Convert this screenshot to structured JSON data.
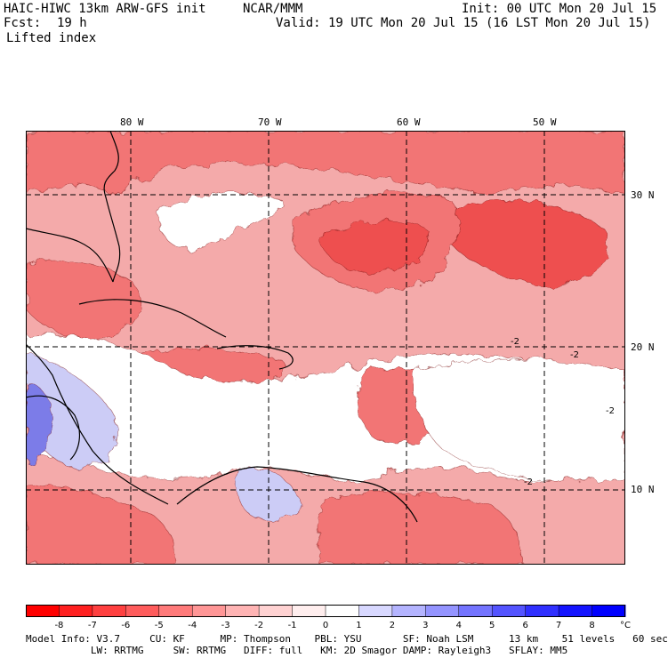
{
  "header": {
    "model": "HAIC-HIWC 13km ARW-GFS init",
    "center": "NCAR/MMM",
    "init": "Init: 00 UTC Mon 20 Jul 15",
    "fcst_label": "Fcst:",
    "fcst_value": "19 h",
    "valid": "Valid: 19 UTC Mon 20 Jul 15 (16 LST Mon 20 Jul 15)",
    "field": "Lifted index"
  },
  "map": {
    "lon_labels": [
      "80 W",
      "70 W",
      "60 W",
      "50 W"
    ],
    "lat_labels": [
      "30 N",
      "20 N",
      "10 N"
    ],
    "contour_labels": [
      "-2",
      "-2",
      "-2",
      "-2"
    ],
    "colors": {
      "background": "#f4aaaa",
      "very_unstable": "#ee4f4f",
      "unstable": "#f27474",
      "neutral": "#ffffff",
      "stable_light": "#ccccf6",
      "stable": "#7c7ce8",
      "land_line": "#000000",
      "grid_line": "#000000"
    }
  },
  "legend": {
    "ticks": [
      "-8",
      "-7",
      "-6",
      "-5",
      "-4",
      "-3",
      "-2",
      "-1",
      "0",
      "1",
      "2",
      "3",
      "4",
      "5",
      "6",
      "7",
      "8"
    ],
    "unit": "°C",
    "colors": [
      "#ff0000",
      "#ff2020",
      "#ff4040",
      "#ff5c5c",
      "#ff7a7a",
      "#ff9696",
      "#ffb4b4",
      "#ffd2d2",
      "#ffeeee",
      "#ffffff",
      "#d8d8ff",
      "#b4b4ff",
      "#9494ff",
      "#7474ff",
      "#5454ff",
      "#3030ff",
      "#1414ff",
      "#0000ff"
    ]
  },
  "footer": {
    "line1": "Model Info: V3.7     CU: KF      MP: Thompson    PBL: YSU       SF: Noah LSM      13 km    51 levels   60 sec",
    "line2": "           LW: RRTMG     SW: RRTMG   DIFF: full   KM: 2D Smagor DAMP: Rayleigh3   SFLAY: MM5"
  }
}
